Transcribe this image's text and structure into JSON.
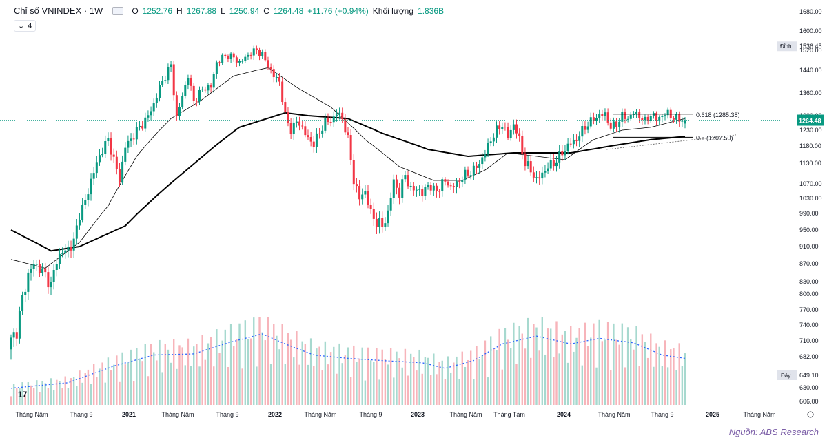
{
  "header": {
    "symbol": "Chỉ số VNINDEX · 1W",
    "open_label": "O",
    "open": "1252.76",
    "high_label": "H",
    "high": "1267.88",
    "low_label": "L",
    "low": "1250.94",
    "close_label": "C",
    "close": "1264.48",
    "change": "+11.76 (+0.94%)",
    "volume_label": "Khối lượng",
    "volume": "1.836B",
    "indicator_count": "4"
  },
  "source": "Nguồn: ABS Research",
  "tv_logo": "17",
  "chart_data": {
    "type": "candlestick",
    "title": "Chỉ số VNINDEX · 1W",
    "y_ticks": [
      606,
      630,
      682,
      710,
      740,
      770,
      800,
      830,
      870,
      910,
      950,
      990,
      1030,
      1070,
      1130,
      1180,
      1230,
      1280,
      1360,
      1440,
      1520,
      1600,
      1680
    ],
    "y_tick_labels": [
      "606.00",
      "630.00",
      "682.00",
      "710.00",
      "740.00",
      "770.00",
      "800.00",
      "830.00",
      "870.00",
      "910.00",
      "950.00",
      "990.00",
      "1030.00",
      "1070.00",
      "1130.00",
      "1180.00",
      "1230.00",
      "1280.00",
      "1360.00",
      "1440.00",
      "1520.00",
      "1600.00",
      "1680.00"
    ],
    "x_labels": [
      "Tháng Năm",
      "Tháng 9",
      "2021",
      "Tháng Năm",
      "Tháng 9",
      "2022",
      "Tháng Năm",
      "Tháng 9",
      "2023",
      "Tháng Năm",
      "Tháng Tám",
      "2024",
      "Tháng Năm",
      "Tháng 9",
      "2025",
      "Tháng Năm"
    ],
    "close_anchors": [
      [
        0,
        710
      ],
      [
        2,
        730
      ],
      [
        4,
        790
      ],
      [
        6,
        845
      ],
      [
        8,
        870
      ],
      [
        10,
        860
      ],
      [
        12,
        845
      ],
      [
        14,
        820
      ],
      [
        16,
        880
      ],
      [
        18,
        895
      ],
      [
        20,
        905
      ],
      [
        22,
        920
      ],
      [
        24,
        990
      ],
      [
        26,
        1020
      ],
      [
        28,
        1080
      ],
      [
        30,
        1130
      ],
      [
        32,
        1170
      ],
      [
        34,
        1200
      ],
      [
        36,
        1140
      ],
      [
        38,
        1080
      ],
      [
        40,
        1180
      ],
      [
        42,
        1200
      ],
      [
        44,
        1230
      ],
      [
        46,
        1250
      ],
      [
        48,
        1280
      ],
      [
        50,
        1320
      ],
      [
        52,
        1380
      ],
      [
        54,
        1420
      ],
      [
        56,
        1460
      ],
      [
        58,
        1270
      ],
      [
        60,
        1350
      ],
      [
        62,
        1420
      ],
      [
        64,
        1330
      ],
      [
        66,
        1360
      ],
      [
        68,
        1380
      ],
      [
        70,
        1380
      ],
      [
        72,
        1470
      ],
      [
        74,
        1490
      ],
      [
        76,
        1500
      ],
      [
        78,
        1490
      ],
      [
        80,
        1470
      ],
      [
        82,
        1490
      ],
      [
        84,
        1510
      ],
      [
        86,
        1520
      ],
      [
        88,
        1500
      ],
      [
        90,
        1460
      ],
      [
        92,
        1420
      ],
      [
        94,
        1400
      ],
      [
        96,
        1280
      ],
      [
        98,
        1230
      ],
      [
        100,
        1260
      ],
      [
        102,
        1240
      ],
      [
        104,
        1200
      ],
      [
        106,
        1190
      ],
      [
        108,
        1220
      ],
      [
        110,
        1260
      ],
      [
        112,
        1260
      ],
      [
        114,
        1290
      ],
      [
        116,
        1270
      ],
      [
        118,
        1200
      ],
      [
        120,
        1080
      ],
      [
        122,
        1030
      ],
      [
        124,
        1050
      ],
      [
        126,
        990
      ],
      [
        128,
        970
      ],
      [
        130,
        960
      ],
      [
        132,
        990
      ],
      [
        134,
        1080
      ],
      [
        136,
        1040
      ],
      [
        138,
        1100
      ],
      [
        140,
        1050
      ],
      [
        142,
        1060
      ],
      [
        144,
        1040
      ],
      [
        146,
        1070
      ],
      [
        148,
        1050
      ],
      [
        150,
        1060
      ],
      [
        152,
        1080
      ],
      [
        154,
        1060
      ],
      [
        156,
        1070
      ],
      [
        158,
        1090
      ],
      [
        160,
        1100
      ],
      [
        162,
        1110
      ],
      [
        164,
        1130
      ],
      [
        166,
        1160
      ],
      [
        168,
        1200
      ],
      [
        170,
        1230
      ],
      [
        172,
        1250
      ],
      [
        174,
        1210
      ],
      [
        176,
        1250
      ],
      [
        178,
        1200
      ],
      [
        180,
        1130
      ],
      [
        182,
        1110
      ],
      [
        184,
        1080
      ],
      [
        186,
        1100
      ],
      [
        188,
        1120
      ],
      [
        190,
        1130
      ],
      [
        192,
        1150
      ],
      [
        194,
        1170
      ],
      [
        196,
        1190
      ],
      [
        198,
        1200
      ],
      [
        200,
        1230
      ],
      [
        202,
        1250
      ],
      [
        204,
        1270
      ],
      [
        206,
        1280
      ],
      [
        208,
        1285
      ],
      [
        210,
        1240
      ],
      [
        212,
        1250
      ],
      [
        214,
        1280
      ],
      [
        216,
        1270
      ],
      [
        218,
        1290
      ],
      [
        220,
        1280
      ],
      [
        222,
        1260
      ],
      [
        224,
        1285
      ],
      [
        226,
        1270
      ],
      [
        228,
        1280
      ],
      [
        230,
        1290
      ],
      [
        232,
        1270
      ],
      [
        234,
        1270
      ],
      [
        236,
        1265
      ]
    ],
    "ma_slow_anchors": [
      [
        0,
        950
      ],
      [
        14,
        900
      ],
      [
        24,
        910
      ],
      [
        40,
        960
      ],
      [
        60,
        1100
      ],
      [
        80,
        1240
      ],
      [
        96,
        1290
      ],
      [
        104,
        1280
      ],
      [
        118,
        1270
      ],
      [
        130,
        1220
      ],
      [
        146,
        1170
      ],
      [
        160,
        1150
      ],
      [
        176,
        1160
      ],
      [
        196,
        1160
      ],
      [
        210,
        1180
      ],
      [
        224,
        1200
      ],
      [
        236,
        1210
      ]
    ],
    "ma_fast_anchors": [
      [
        0,
        880
      ],
      [
        12,
        860
      ],
      [
        24,
        920
      ],
      [
        34,
        1010
      ],
      [
        44,
        1150
      ],
      [
        56,
        1270
      ],
      [
        66,
        1330
      ],
      [
        78,
        1420
      ],
      [
        90,
        1450
      ],
      [
        100,
        1380
      ],
      [
        112,
        1310
      ],
      [
        124,
        1200
      ],
      [
        136,
        1120
      ],
      [
        148,
        1080
      ],
      [
        158,
        1080
      ],
      [
        166,
        1110
      ],
      [
        174,
        1160
      ],
      [
        184,
        1150
      ],
      [
        194,
        1140
      ],
      [
        204,
        1200
      ],
      [
        214,
        1230
      ],
      [
        224,
        1240
      ],
      [
        236,
        1270
      ]
    ],
    "volume_ma_anchors": [
      [
        0,
        0.15
      ],
      [
        20,
        0.2
      ],
      [
        36,
        0.35
      ],
      [
        50,
        0.45
      ],
      [
        64,
        0.46
      ],
      [
        76,
        0.56
      ],
      [
        88,
        0.64
      ],
      [
        96,
        0.55
      ],
      [
        106,
        0.45
      ],
      [
        118,
        0.42
      ],
      [
        130,
        0.4
      ],
      [
        144,
        0.38
      ],
      [
        152,
        0.33
      ],
      [
        162,
        0.4
      ],
      [
        172,
        0.55
      ],
      [
        184,
        0.62
      ],
      [
        196,
        0.55
      ],
      [
        206,
        0.6
      ],
      [
        218,
        0.56
      ],
      [
        228,
        0.45
      ],
      [
        236,
        0.42
      ]
    ],
    "last_price": "1264.48",
    "fib_0618": "0.618 (1285.38)",
    "fib_05": "0.5 (1207.50)",
    "peak_label": "Đỉnh",
    "peak_value": "1536.45",
    "trough_label": "Đáy",
    "trough_value": "649.10",
    "up_color": "#089981",
    "down_color": "#f23645"
  }
}
